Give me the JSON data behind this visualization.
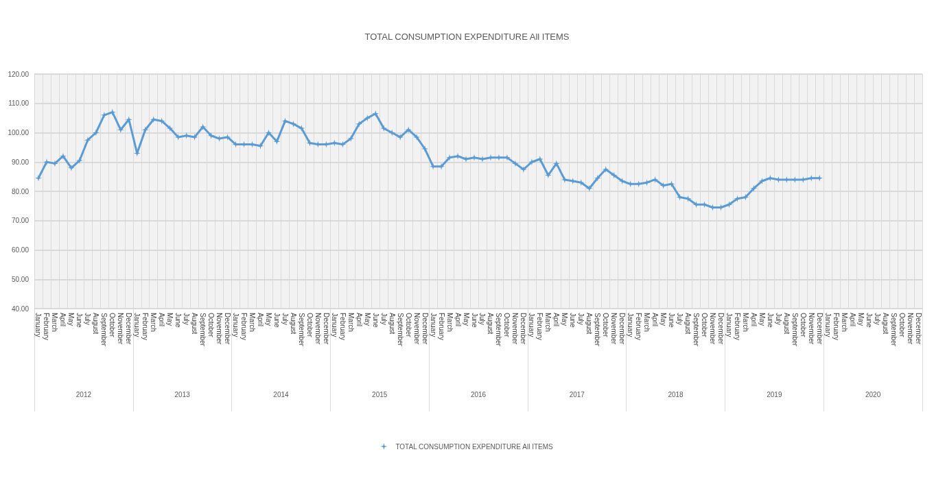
{
  "chart_data": {
    "type": "line",
    "title": "TOTAL CONSUMPTION EXPENDITURE All ITEMS",
    "categories": [
      "January",
      "February",
      "March",
      "April",
      "May",
      "June",
      "July",
      "August",
      "September",
      "October",
      "November",
      "December",
      "January",
      "February",
      "March",
      "April",
      "May",
      "June",
      "July",
      "August",
      "September",
      "October",
      "November",
      "December",
      "January",
      "February",
      "March",
      "April",
      "May",
      "June",
      "July",
      "August",
      "September",
      "October",
      "November",
      "December",
      "January",
      "February",
      "March",
      "April",
      "May",
      "June",
      "July",
      "August",
      "September",
      "October",
      "November",
      "December",
      "January",
      "February",
      "March",
      "April",
      "May",
      "June",
      "July",
      "August",
      "September",
      "October",
      "November",
      "December",
      "January",
      "February",
      "March",
      "April",
      "May",
      "June",
      "July",
      "August",
      "September",
      "October",
      "November",
      "December",
      "January",
      "February",
      "March",
      "April",
      "May",
      "June",
      "July",
      "August",
      "September",
      "October",
      "November",
      "December",
      "January",
      "February",
      "March",
      "April",
      "May",
      "June",
      "July",
      "August",
      "September",
      "October",
      "November",
      "December",
      "January",
      "February",
      "March",
      "April",
      "May",
      "June",
      "July",
      "August",
      "September",
      "October",
      "November",
      "December"
    ],
    "annotations": [
      "2012",
      "2013",
      "2014",
      "2015",
      "2016",
      "2017",
      "2018",
      "2019",
      "2020"
    ],
    "series": [
      {
        "name": "TOTAL CONSUMPTION EXPENDITURE All ITEMS",
        "color": "#5b9bd5",
        "values": [
          84.5,
          90,
          89.5,
          92,
          88,
          90.5,
          97.5,
          100,
          106,
          107,
          101,
          104.5,
          93,
          101,
          104.5,
          104,
          101.5,
          98.5,
          99,
          98.5,
          102,
          99,
          98,
          98.5,
          96,
          96,
          96,
          95.5,
          100,
          97,
          104,
          103,
          101.5,
          96.5,
          96,
          96,
          96.5,
          96,
          98,
          103,
          105,
          106.5,
          101.5,
          100,
          98.5,
          101,
          98.5,
          94.5,
          88.5,
          88.5,
          91.5,
          92,
          91,
          91.5,
          91,
          91.5,
          91.5,
          91.5,
          89.5,
          87.5,
          90,
          91,
          85.5,
          89.5,
          84,
          83.5,
          83,
          81,
          84.5,
          87.5,
          85.5,
          83.5,
          82.5,
          82.5,
          83,
          84,
          82,
          82.5,
          78,
          77.5,
          75.5,
          75.5,
          74.5,
          74.5,
          75.5,
          77.5,
          78,
          81,
          83.5,
          84.5,
          84,
          84,
          84,
          84,
          84.5,
          84.5,
          null,
          null,
          null,
          null,
          null,
          null,
          null,
          null,
          null,
          null,
          null,
          null
        ]
      }
    ],
    "ylim": [
      40,
      120
    ],
    "yticks": [
      {
        "value": 40,
        "label": "40.00"
      },
      {
        "value": 50,
        "label": "50.00"
      },
      {
        "value": 60,
        "label": "60.00"
      },
      {
        "value": 70,
        "label": "70.00"
      },
      {
        "value": 80,
        "label": "80.00"
      },
      {
        "value": 90,
        "label": "90.00"
      },
      {
        "value": 100,
        "label": "100.00"
      },
      {
        "value": 110,
        "label": "110.00"
      },
      {
        "value": 120,
        "label": "120.00"
      }
    ],
    "grid": true,
    "legend": "bottom",
    "marker": "cross",
    "line_style": "solid"
  }
}
